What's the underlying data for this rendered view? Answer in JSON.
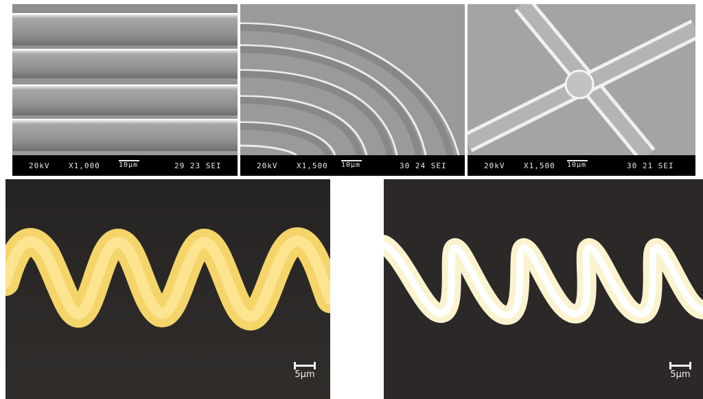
{
  "sem_panels": [
    {
      "kv": "20kV",
      "mag": "X1,000",
      "scale": "10µm",
      "code": "29 23 SEI"
    },
    {
      "kv": "20kV",
      "mag": "X1,500",
      "scale": "10µm",
      "code": "30 24 SEI"
    },
    {
      "kv": "20kV",
      "mag": "X1,500",
      "scale": "10µm",
      "code": "30 21 SEI"
    }
  ],
  "optical_panels": [
    {
      "scale": "5µm"
    },
    {
      "scale": "5µm"
    }
  ]
}
